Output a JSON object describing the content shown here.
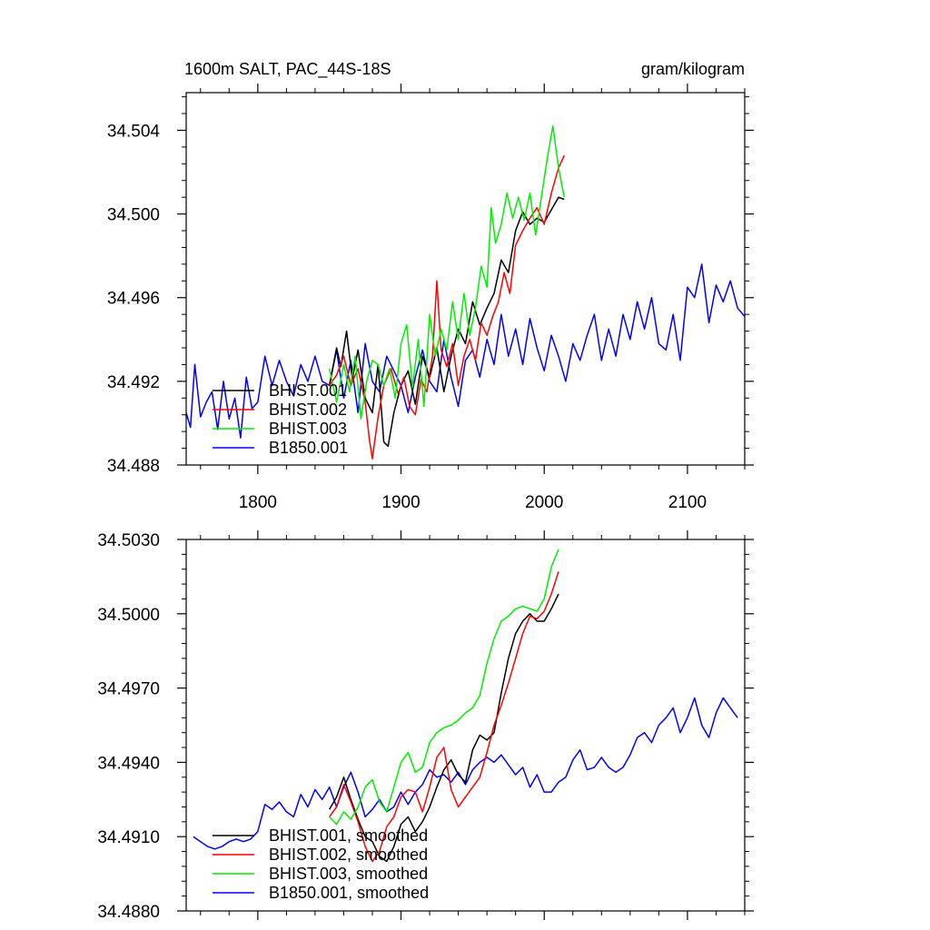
{
  "chart_data": [
    {
      "type": "line",
      "title": "1600m SALT, PAC_44S-18S",
      "units": "gram/kilogram",
      "xlim": [
        1750,
        2140
      ],
      "ylim": [
        34.488,
        34.5058
      ],
      "xticks": [
        1800,
        1900,
        2000,
        2100
      ],
      "xtick_labels": [
        "1800",
        "1900",
        "2000",
        "2100"
      ],
      "yticks": [
        34.488,
        34.492,
        34.496,
        34.5,
        34.504
      ],
      "ytick_labels": [
        "34.488",
        "34.492",
        "34.496",
        "34.500",
        "34.504"
      ],
      "legend_position": "bottom-left",
      "series": [
        {
          "name": "BHIST.001",
          "color": "#000000",
          "x": [
            1850,
            1855,
            1858,
            1862,
            1866,
            1870,
            1875,
            1880,
            1884,
            1888,
            1891,
            1895,
            1900,
            1905,
            1910,
            1915,
            1920,
            1925,
            1930,
            1935,
            1940,
            1945,
            1950,
            1955,
            1960,
            1965,
            1970,
            1975,
            1980,
            1985,
            1990,
            1995,
            2000,
            2005,
            2010,
            2014
          ],
          "y": [
            34.4918,
            34.4936,
            34.4927,
            34.4944,
            34.4921,
            34.4935,
            34.4912,
            34.4905,
            34.4928,
            34.4891,
            34.4889,
            34.4905,
            34.4918,
            34.4925,
            34.4909,
            34.4932,
            34.4922,
            34.4936,
            34.4915,
            34.4932,
            34.4945,
            34.4938,
            34.4958,
            34.4947,
            34.4955,
            34.4962,
            34.4978,
            34.4972,
            34.4992,
            34.5001,
            34.4995,
            34.4998,
            34.4996,
            34.5002,
            34.5008,
            34.5007
          ]
        },
        {
          "name": "BHIST.002",
          "color": "#ff0000",
          "x": [
            1850,
            1855,
            1860,
            1865,
            1870,
            1875,
            1878,
            1880,
            1884,
            1888,
            1893,
            1898,
            1902,
            1906,
            1910,
            1914,
            1918,
            1922,
            1925,
            1928,
            1932,
            1936,
            1940,
            1944,
            1948,
            1952,
            1956,
            1960,
            1964,
            1968,
            1972,
            1976,
            1980,
            1985,
            1990,
            1995,
            2000,
            2005,
            2010,
            2014
          ],
          "y": [
            34.4918,
            34.4923,
            34.4932,
            34.4918,
            34.4926,
            34.491,
            34.4892,
            34.4883,
            34.4903,
            34.4918,
            34.4926,
            34.4914,
            34.4922,
            34.4908,
            34.4904,
            34.4921,
            34.4915,
            34.4932,
            34.4968,
            34.4935,
            34.4927,
            34.4938,
            34.4918,
            34.4932,
            34.494,
            34.493,
            34.4948,
            34.4942,
            34.4951,
            34.4958,
            34.4972,
            34.4962,
            34.4985,
            34.4992,
            34.4998,
            34.5003,
            34.4995,
            34.501,
            34.5022,
            34.5028
          ]
        },
        {
          "name": "BHIST.003",
          "color": "#00ee00",
          "x": [
            1850,
            1855,
            1860,
            1864,
            1868,
            1872,
            1876,
            1880,
            1884,
            1888,
            1892,
            1896,
            1900,
            1904,
            1908,
            1912,
            1916,
            1920,
            1924,
            1928,
            1932,
            1936,
            1940,
            1944,
            1948,
            1952,
            1956,
            1960,
            1963,
            1966,
            1970,
            1974,
            1978,
            1982,
            1986,
            1990,
            1994,
            1998,
            2002,
            2006,
            2010,
            2014
          ],
          "y": [
            34.4926,
            34.491,
            34.4928,
            34.4915,
            34.4932,
            34.4902,
            34.492,
            34.493,
            34.4928,
            34.4918,
            34.4926,
            34.4912,
            34.4938,
            34.4947,
            34.4917,
            34.494,
            34.4908,
            34.4952,
            34.4932,
            34.4945,
            34.4935,
            34.4958,
            34.494,
            34.4962,
            34.4942,
            34.4955,
            34.4975,
            34.4965,
            34.5003,
            34.4986,
            34.4995,
            34.501,
            34.4998,
            34.5008,
            34.4997,
            34.501,
            34.499,
            34.5008,
            34.5026,
            34.5042,
            34.5022,
            34.5008
          ]
        },
        {
          "name": "B1850.001",
          "color": "#0000ff",
          "x": [
            1750,
            1753,
            1756,
            1760,
            1764,
            1768,
            1772,
            1776,
            1780,
            1784,
            1788,
            1792,
            1796,
            1800,
            1805,
            1810,
            1815,
            1820,
            1825,
            1830,
            1835,
            1840,
            1845,
            1850,
            1855,
            1860,
            1865,
            1870,
            1875,
            1880,
            1885,
            1890,
            1895,
            1900,
            1905,
            1910,
            1915,
            1920,
            1925,
            1930,
            1935,
            1940,
            1945,
            1950,
            1955,
            1960,
            1965,
            1970,
            1975,
            1980,
            1985,
            1990,
            1995,
            2000,
            2005,
            2010,
            2015,
            2020,
            2025,
            2030,
            2035,
            2040,
            2045,
            2050,
            2055,
            2060,
            2065,
            2070,
            2075,
            2080,
            2085,
            2090,
            2095,
            2100,
            2105,
            2110,
            2115,
            2120,
            2125,
            2130,
            2135,
            2140
          ],
          "y": [
            34.4905,
            34.4898,
            34.4928,
            34.4903,
            34.491,
            34.4915,
            34.4897,
            34.492,
            34.4902,
            34.4912,
            34.4893,
            34.4922,
            34.4907,
            34.491,
            34.4932,
            34.4918,
            34.493,
            34.492,
            34.4913,
            34.4928,
            34.492,
            34.4932,
            34.492,
            34.4918,
            34.4935,
            34.4912,
            34.493,
            34.4905,
            34.4938,
            34.492,
            34.4915,
            34.4932,
            34.4925,
            34.4918,
            34.4905,
            34.4922,
            34.4935,
            34.492,
            34.4915,
            34.494,
            34.4922,
            34.4908,
            34.493,
            34.4935,
            34.4922,
            34.494,
            34.4928,
            34.4952,
            34.4932,
            34.4945,
            34.4928,
            34.495,
            34.4936,
            34.4925,
            34.4942,
            34.4932,
            34.492,
            34.4938,
            34.493,
            34.4942,
            34.4952,
            34.493,
            34.4945,
            34.4932,
            34.4952,
            34.494,
            34.4958,
            34.4945,
            34.496,
            34.4938,
            34.4935,
            34.4952,
            34.493,
            34.4965,
            34.496,
            34.4976,
            34.4948,
            34.4966,
            34.4958,
            34.4968,
            34.4955,
            34.4951
          ]
        }
      ]
    },
    {
      "type": "line",
      "title": "",
      "xlim": [
        1750,
        2140
      ],
      "ylim": [
        34.488,
        34.503
      ],
      "xticks": [
        1800,
        1900,
        2000,
        2100
      ],
      "yticks": [
        34.488,
        34.491,
        34.494,
        34.497,
        34.5,
        34.503
      ],
      "ytick_labels": [
        "34.4880",
        "34.4910",
        "34.4940",
        "34.4970",
        "34.5000",
        "34.5030"
      ],
      "legend_position": "bottom-left",
      "series": [
        {
          "name": "BHIST.001, smoothed",
          "color": "#000000",
          "x": [
            1850,
            1855,
            1860,
            1865,
            1870,
            1875,
            1880,
            1885,
            1890,
            1895,
            1900,
            1905,
            1910,
            1915,
            1920,
            1925,
            1930,
            1935,
            1940,
            1945,
            1950,
            1955,
            1960,
            1965,
            1970,
            1975,
            1980,
            1985,
            1990,
            1995,
            2000,
            2005,
            2010
          ],
          "y": [
            34.4921,
            34.4926,
            34.4934,
            34.4925,
            34.4917,
            34.491,
            34.4908,
            34.4902,
            34.49,
            34.4906,
            34.4915,
            34.4918,
            34.4912,
            34.4916,
            34.4922,
            34.493,
            34.4937,
            34.4941,
            34.4935,
            34.4932,
            34.4945,
            34.4951,
            34.4949,
            34.4952,
            34.4968,
            34.4982,
            34.4992,
            34.4997,
            34.5,
            34.4997,
            34.4997,
            34.5002,
            34.5008
          ]
        },
        {
          "name": "BHIST.002, smoothed",
          "color": "#ff0000",
          "x": [
            1850,
            1855,
            1860,
            1865,
            1870,
            1875,
            1880,
            1885,
            1890,
            1895,
            1900,
            1905,
            1910,
            1915,
            1920,
            1925,
            1930,
            1935,
            1940,
            1945,
            1950,
            1955,
            1960,
            1965,
            1970,
            1975,
            1980,
            1985,
            1990,
            1995,
            2000,
            2005,
            2010
          ],
          "y": [
            34.4918,
            34.4922,
            34.4931,
            34.4924,
            34.4916,
            34.4906,
            34.49,
            34.4904,
            34.4914,
            34.4918,
            34.4926,
            34.4929,
            34.4928,
            34.492,
            34.493,
            34.4942,
            34.4946,
            34.4929,
            34.4922,
            34.4926,
            34.493,
            34.4934,
            34.4944,
            34.4955,
            34.4963,
            34.4972,
            34.4982,
            34.4992,
            34.4999,
            34.4998,
            34.5001,
            34.5008,
            34.5017
          ]
        },
        {
          "name": "BHIST.003, smoothed",
          "color": "#00ee00",
          "x": [
            1850,
            1855,
            1860,
            1865,
            1870,
            1875,
            1880,
            1885,
            1890,
            1895,
            1900,
            1905,
            1910,
            1915,
            1920,
            1925,
            1930,
            1935,
            1940,
            1945,
            1950,
            1955,
            1960,
            1965,
            1970,
            1975,
            1980,
            1985,
            1990,
            1995,
            2000,
            2005,
            2010
          ],
          "y": [
            34.4918,
            34.4915,
            34.492,
            34.4917,
            34.4922,
            34.493,
            34.4933,
            34.4924,
            34.492,
            34.493,
            34.494,
            34.4944,
            34.4936,
            34.4938,
            34.4948,
            34.4952,
            34.4954,
            34.4955,
            34.4957,
            34.496,
            34.4962,
            34.4967,
            34.498,
            34.499,
            34.4997,
            34.4999,
            34.5002,
            34.5003,
            34.5002,
            34.5001,
            34.5006,
            34.5019,
            34.5026
          ]
        },
        {
          "name": "B1850.001, smoothed",
          "color": "#0000ff",
          "x": [
            1755,
            1760,
            1765,
            1770,
            1775,
            1780,
            1785,
            1790,
            1795,
            1800,
            1805,
            1810,
            1815,
            1820,
            1825,
            1830,
            1835,
            1840,
            1845,
            1850,
            1855,
            1860,
            1865,
            1870,
            1875,
            1880,
            1885,
            1890,
            1895,
            1900,
            1905,
            1910,
            1915,
            1920,
            1925,
            1930,
            1935,
            1940,
            1945,
            1950,
            1955,
            1960,
            1965,
            1970,
            1975,
            1980,
            1985,
            1990,
            1995,
            2000,
            2005,
            2010,
            2015,
            2020,
            2025,
            2030,
            2035,
            2040,
            2045,
            2050,
            2055,
            2060,
            2065,
            2070,
            2075,
            2080,
            2085,
            2090,
            2095,
            2100,
            2105,
            2110,
            2115,
            2120,
            2125,
            2130,
            2135
          ],
          "y": [
            34.491,
            34.4908,
            34.4906,
            34.4905,
            34.4906,
            34.4908,
            34.4909,
            34.4908,
            34.4909,
            34.4912,
            34.4923,
            34.4921,
            34.4924,
            34.492,
            34.4918,
            34.4927,
            34.4922,
            34.4929,
            34.4925,
            34.493,
            34.4922,
            34.493,
            34.4936,
            34.4928,
            34.4918,
            34.4921,
            34.4925,
            34.492,
            34.4922,
            34.4928,
            34.4923,
            34.4928,
            34.4931,
            34.4937,
            34.4934,
            34.4935,
            34.4932,
            34.4936,
            34.4931,
            34.4937,
            34.494,
            34.4942,
            34.494,
            34.4943,
            34.4939,
            34.4935,
            34.4938,
            34.493,
            34.4935,
            34.4928,
            34.4928,
            34.4932,
            34.4934,
            34.4941,
            34.4945,
            34.4937,
            34.4938,
            34.4942,
            34.4938,
            34.4936,
            34.4938,
            34.4943,
            34.495,
            34.4952,
            34.4948,
            34.4955,
            34.4958,
            34.4962,
            34.4952,
            34.4958,
            34.4966,
            34.4955,
            34.495,
            34.496,
            34.4966,
            34.4962,
            34.4958
          ]
        }
      ]
    }
  ]
}
